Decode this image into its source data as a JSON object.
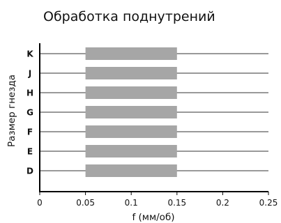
{
  "chart_data": {
    "type": "bar",
    "orientation": "horizontal-range",
    "title": "Обработка поднутрений",
    "xlabel": "f (мм/об)",
    "ylabel": "Размер гнезда",
    "categories": [
      "K",
      "J",
      "H",
      "G",
      "F",
      "E",
      "D"
    ],
    "ranges": [
      {
        "category": "K",
        "start": 0.05,
        "end": 0.15
      },
      {
        "category": "J",
        "start": 0.05,
        "end": 0.15
      },
      {
        "category": "H",
        "start": 0.05,
        "end": 0.15
      },
      {
        "category": "G",
        "start": 0.05,
        "end": 0.15
      },
      {
        "category": "F",
        "start": 0.05,
        "end": 0.15
      },
      {
        "category": "E",
        "start": 0.05,
        "end": 0.15
      },
      {
        "category": "D",
        "start": 0.05,
        "end": 0.15
      }
    ],
    "xlim": [
      0,
      0.25
    ],
    "xticks": [
      "0",
      "0.05",
      "0.1",
      "0.15",
      "0.2",
      "0.25"
    ],
    "xtick_values": [
      0,
      0.05,
      0.1,
      0.15,
      0.2,
      0.25
    ],
    "bar_color": "#a6a6a6",
    "row_line_color": "#333333",
    "grid": false,
    "legend": "none"
  }
}
